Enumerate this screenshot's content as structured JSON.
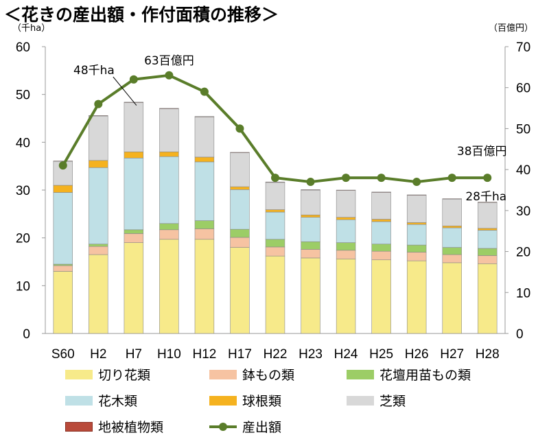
{
  "title": "＜花きの産出額・作付面積の推移＞",
  "chart_data": {
    "type": "bar",
    "stacked": true,
    "categories": [
      "S60",
      "H2",
      "H7",
      "H10",
      "H12",
      "H17",
      "H22",
      "H23",
      "H24",
      "H25",
      "H26",
      "H27",
      "H28"
    ],
    "left_axis": {
      "unit_label": "（千ha）",
      "ylim": [
        0,
        60
      ],
      "ticks": [
        "0",
        "10",
        "20",
        "30",
        "40",
        "50",
        "60"
      ]
    },
    "right_axis": {
      "unit_label": "（百億円）",
      "ylim": [
        0,
        70
      ],
      "ticks": [
        "0",
        "10",
        "20",
        "30",
        "40",
        "50",
        "60",
        "70"
      ]
    },
    "series": [
      {
        "name": "切り花類",
        "color": "#f7ea8a",
        "values": [
          13.0,
          16.5,
          19.0,
          19.7,
          19.7,
          18.0,
          16.2,
          15.8,
          15.6,
          15.4,
          15.2,
          14.8,
          14.6
        ]
      },
      {
        "name": "鉢もの類",
        "color": "#f6c3a2",
        "values": [
          1.2,
          1.7,
          1.9,
          2.0,
          2.2,
          2.1,
          1.9,
          1.8,
          1.8,
          1.8,
          1.8,
          1.7,
          1.7
        ]
      },
      {
        "name": "花壇用苗もの類",
        "color": "#9ccd66",
        "values": [
          0.3,
          0.5,
          0.8,
          1.3,
          1.7,
          1.7,
          1.6,
          1.6,
          1.6,
          1.5,
          1.5,
          1.5,
          1.5
        ]
      },
      {
        "name": "花木類",
        "color": "#bfe0e6",
        "values": [
          15.0,
          16.0,
          15.0,
          14.0,
          12.3,
          8.3,
          5.7,
          5.1,
          4.8,
          4.7,
          4.3,
          4.1,
          3.8
        ]
      },
      {
        "name": "球根類",
        "color": "#f5b21f",
        "values": [
          1.5,
          1.5,
          1.3,
          1.0,
          1.0,
          0.6,
          0.5,
          0.5,
          0.5,
          0.5,
          0.4,
          0.4,
          0.4
        ]
      },
      {
        "name": "芝類",
        "color": "#d8d8d8",
        "values": [
          5.0,
          9.3,
          10.3,
          9.0,
          8.4,
          7.1,
          5.7,
          5.2,
          5.6,
          5.6,
          5.7,
          5.6,
          5.4
        ]
      },
      {
        "name": "地被植物類",
        "color": "#b94a3a",
        "values": [
          0.1,
          0.1,
          0.1,
          0.1,
          0.1,
          0.1,
          0.1,
          0.1,
          0.1,
          0.1,
          0.1,
          0.1,
          0.1
        ]
      }
    ],
    "line_series": {
      "name": "産出額",
      "axis": "right",
      "color": "#5a7d2a",
      "values": [
        41,
        56,
        62,
        63,
        59,
        50,
        38,
        37,
        38,
        38,
        37,
        38,
        38
      ]
    },
    "annotations": [
      {
        "text": "48千ha",
        "category": "H7",
        "axis": "left",
        "value": 48
      },
      {
        "text": "63百億円",
        "category": "H10",
        "axis": "right",
        "value": 63
      },
      {
        "text": "38百億円",
        "category": "H28",
        "axis": "right",
        "value": 38
      },
      {
        "text": "28千ha",
        "category": "H28",
        "axis": "left",
        "value": 28
      }
    ],
    "grid": false,
    "legend_position": "bottom"
  }
}
